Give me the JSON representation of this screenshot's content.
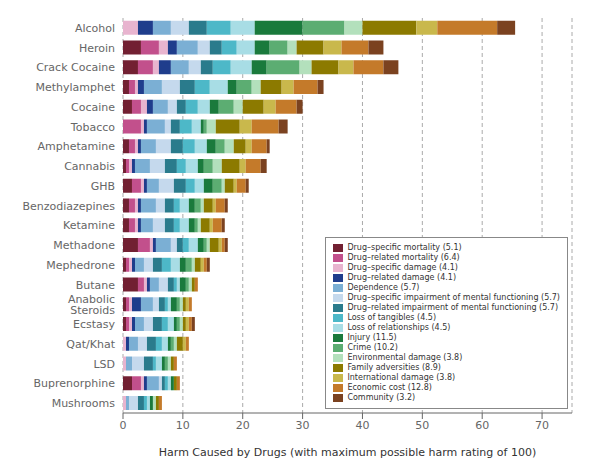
{
  "chart_data": {
    "type": "bar",
    "orientation": "horizontal",
    "stacked": true,
    "xlabel": "Harm Caused by Drugs (with maximum possible harm rating of 100)",
    "xlim": [
      0,
      75
    ],
    "xticks": [
      0,
      10,
      20,
      30,
      40,
      50,
      60,
      70
    ],
    "grid": true,
    "legend": "lower right",
    "categories": [
      "Alcohol",
      "Heroin",
      "Crack Cocaine",
      "Methylamphet",
      "Cocaine",
      "Tobacco",
      "Amphetamine",
      "Cannabis",
      "GHB",
      "Benzodiazepines",
      "Ketamine",
      "Methadone",
      "Mephedrone",
      "Butane",
      "Anabolic Steroids",
      "Ecstasy",
      "Qat/Khat",
      "LSD",
      "Buprenorphine",
      "Mushrooms"
    ],
    "series": [
      {
        "name": "Drug–specific mortality (5.1)",
        "color": "#722032",
        "values": [
          0,
          3,
          2.5,
          1,
          1.5,
          0,
          1,
          0.5,
          1.5,
          1,
          1,
          2.5,
          0.5,
          2.5,
          0.5,
          0.5,
          0,
          0,
          1.5,
          0
        ]
      },
      {
        "name": "Drug–related mortality (6.4)",
        "color": "#c2508c",
        "values": [
          0,
          3,
          2.5,
          1,
          1.5,
          3,
          1,
          0.5,
          1.5,
          1,
          1,
          2,
          0.5,
          1,
          0.5,
          0.5,
          0,
          0,
          1.5,
          0
        ]
      },
      {
        "name": "Drug–specific damage (4.1)",
        "color": "#e8b4cf",
        "values": [
          2.5,
          1.5,
          1,
          0.5,
          1,
          0.5,
          0.5,
          0.5,
          0.5,
          0.5,
          0.5,
          0.5,
          0.5,
          0.5,
          0.5,
          0.5,
          0.5,
          0.5,
          0.5,
          0.5
        ]
      },
      {
        "name": "Drug–related damage (4.1)",
        "color": "#1f3d8c",
        "values": [
          2.5,
          1.5,
          2,
          1,
          1,
          0.5,
          0.5,
          0.5,
          0.5,
          0.5,
          0.5,
          0.5,
          0.5,
          0.5,
          1.5,
          0.5,
          0.5,
          0,
          0.5,
          0
        ]
      },
      {
        "name": "Dependence (5.7)",
        "color": "#7bafd4",
        "values": [
          3,
          3.5,
          3,
          3,
          2.5,
          3,
          2.5,
          2.5,
          2,
          2.5,
          2,
          2.5,
          1.5,
          1.5,
          2,
          1.5,
          1.5,
          1,
          2,
          0.5
        ]
      },
      {
        "name": "Drug–specific impairment of mental functioning (5.7)",
        "color": "#c5d9ed",
        "values": [
          3,
          2,
          2,
          3,
          1.5,
          1,
          2.5,
          2.5,
          2.5,
          1.5,
          2,
          1,
          1.5,
          1.5,
          1,
          1.5,
          1.5,
          2,
          0.5,
          1.5
        ]
      },
      {
        "name": "Drug–related impairment of mental functioning (5.7)",
        "color": "#2a7b8c",
        "values": [
          3,
          2,
          2,
          2.5,
          1.5,
          1.5,
          2,
          2,
          2,
          1.5,
          1.5,
          1,
          1.5,
          1,
          1,
          1.5,
          1.5,
          1.5,
          0.5,
          1
        ]
      },
      {
        "name": "Loss of tangibles (4.5)",
        "color": "#4db8c8",
        "values": [
          4,
          2.5,
          3,
          2.5,
          2,
          2,
          2,
          1.5,
          1.5,
          1,
          1,
          1,
          1.5,
          0.5,
          0.5,
          1,
          1,
          0.5,
          0.5,
          0.5
        ]
      },
      {
        "name": "Loss of relationships (4.5)",
        "color": "#a8dde5",
        "values": [
          4,
          3,
          3.5,
          3,
          2,
          1.5,
          2,
          2,
          1.5,
          1.5,
          1.5,
          1.5,
          1.5,
          0.5,
          0.5,
          1,
          1,
          1,
          0.5,
          0.5
        ]
      },
      {
        "name": "Injury (11.5)",
        "color": "#1a7a3c",
        "values": [
          8,
          2.5,
          2.5,
          1.5,
          1.5,
          0.5,
          1.5,
          1,
          1.5,
          1,
          1,
          1,
          1,
          1,
          1,
          0.5,
          0.5,
          0.5,
          0.5,
          0.5
        ]
      },
      {
        "name": "Crime (10.2)",
        "color": "#5cad72",
        "values": [
          7,
          3,
          5.5,
          2.5,
          2.5,
          0.5,
          1.5,
          1.5,
          1.5,
          1,
          0.5,
          0.5,
          1,
          0.5,
          0.5,
          0.5,
          0.5,
          0.5,
          0,
          0
        ]
      },
      {
        "name": "Environmental damage (3.8)",
        "color": "#b3e0bc",
        "values": [
          3,
          1.5,
          2,
          1.5,
          1.5,
          1.5,
          1.5,
          1.5,
          0.5,
          0.5,
          0.5,
          0.5,
          0.5,
          0.5,
          0.5,
          0.5,
          0.5,
          0.5,
          0,
          0.5
        ]
      },
      {
        "name": "Family adversities (8.9)",
        "color": "#8c7a00",
        "values": [
          9,
          4.5,
          4.5,
          3.5,
          3.5,
          4,
          2,
          3,
          1.5,
          1.5,
          1.5,
          1.5,
          1,
          0.5,
          0.5,
          0.5,
          1,
          0.5,
          0.5,
          0.5
        ]
      },
      {
        "name": "International damage (3.8)",
        "color": "#c9b84c",
        "values": [
          3.5,
          3,
          2.5,
          2,
          2,
          2,
          1,
          1,
          0.5,
          0.5,
          0.5,
          0.5,
          0.5,
          0,
          0.5,
          0.5,
          0.5,
          0,
          0,
          0
        ]
      },
      {
        "name": "Economic cost (12.8)",
        "color": "#c47a2a",
        "values": [
          10,
          4.5,
          5,
          4,
          3.5,
          4.5,
          2.5,
          2.5,
          1.5,
          1.5,
          1.5,
          0.5,
          0.5,
          0.5,
          0.5,
          0.5,
          0.5,
          0.5,
          0.5,
          0.5
        ]
      },
      {
        "name": "Community (3.2)",
        "color": "#7b4220",
        "values": [
          3,
          2.5,
          2.5,
          1,
          1,
          1.5,
          0.5,
          1,
          0.5,
          0.5,
          0.5,
          0.5,
          0.5,
          0,
          0,
          0.5,
          0,
          0,
          0,
          0
        ]
      }
    ]
  }
}
